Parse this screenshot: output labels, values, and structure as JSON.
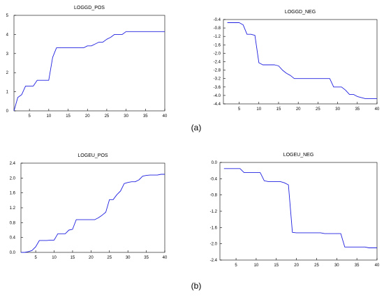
{
  "figure": {
    "panel_labels": [
      "(a)",
      "(b)"
    ]
  },
  "chart_data": [
    {
      "type": "line",
      "title": "LOGGD_POS",
      "xlabel": "",
      "ylabel": "",
      "xlim": [
        1,
        40
      ],
      "ylim": [
        0,
        5
      ],
      "xticks": [
        5,
        10,
        15,
        20,
        25,
        30,
        35,
        40
      ],
      "yticks": [
        0,
        1,
        2,
        3,
        4,
        5
      ],
      "ytick_labels": [
        "0",
        "1",
        "2",
        "3",
        "4",
        "5"
      ],
      "color": "#2020e0",
      "grid": false,
      "series": [
        {
          "x": [
            1,
            2,
            3,
            4,
            5,
            6,
            7,
            8,
            9,
            10,
            11,
            12,
            13,
            14,
            15,
            16,
            17,
            18,
            19,
            20,
            21,
            22,
            23,
            24,
            25,
            26,
            27,
            28,
            29,
            30,
            31,
            32,
            33,
            34,
            35,
            36,
            37,
            38,
            39,
            40
          ],
          "values": [
            0,
            0.7,
            0.85,
            1.3,
            1.3,
            1.3,
            1.6,
            1.6,
            1.6,
            1.6,
            2.8,
            3.3,
            3.3,
            3.3,
            3.3,
            3.3,
            3.3,
            3.3,
            3.3,
            3.4,
            3.4,
            3.5,
            3.6,
            3.6,
            3.75,
            3.85,
            4.0,
            4.0,
            4.0,
            4.15,
            4.15,
            4.15,
            4.15,
            4.15,
            4.15,
            4.15,
            4.15,
            4.15,
            4.15,
            4.15
          ]
        }
      ]
    },
    {
      "type": "line",
      "title": "LOGGD_NEG",
      "xlabel": "",
      "ylabel": "",
      "xlim": [
        1,
        40
      ],
      "ylim": [
        -4.4,
        -0.4
      ],
      "xticks": [
        5,
        10,
        15,
        20,
        25,
        30,
        35,
        40
      ],
      "yticks": [
        -0.4,
        -0.8,
        -1.2,
        -1.6,
        -2.0,
        -2.4,
        -2.8,
        -3.2,
        -3.6,
        -4.0,
        -4.4
      ],
      "ytick_labels": [
        "-0.4",
        "-0.8",
        "-1.2",
        "-1.6",
        "-2.0",
        "-2.4",
        "-2.8",
        "-3.2",
        "-3.6",
        "-4.0",
        "-4.4"
      ],
      "color": "#2020e0",
      "grid": false,
      "series": [
        {
          "x": [
            2,
            3,
            4,
            5,
            6,
            7,
            8,
            9,
            10,
            11,
            12,
            13,
            14,
            15,
            16,
            17,
            18,
            19,
            20,
            21,
            22,
            23,
            24,
            25,
            26,
            27,
            28,
            29,
            30,
            31,
            32,
            33,
            34,
            35,
            36,
            37,
            38,
            39,
            40
          ],
          "values": [
            -0.55,
            -0.55,
            -0.55,
            -0.55,
            -0.65,
            -1.1,
            -1.1,
            -1.15,
            -2.45,
            -2.55,
            -2.55,
            -2.55,
            -2.55,
            -2.6,
            -2.8,
            -2.95,
            -3.05,
            -3.2,
            -3.2,
            -3.2,
            -3.2,
            -3.2,
            -3.2,
            -3.2,
            -3.2,
            -3.2,
            -3.2,
            -3.6,
            -3.6,
            -3.6,
            -3.75,
            -3.95,
            -3.95,
            -4.05,
            -4.1,
            -4.15,
            -4.15,
            -4.15,
            -4.15
          ]
        }
      ]
    },
    {
      "type": "line",
      "title": "LOGEU_POS",
      "xlabel": "",
      "ylabel": "",
      "xlim": [
        1,
        40
      ],
      "ylim": [
        0,
        2.4
      ],
      "xticks": [
        5,
        10,
        15,
        20,
        25,
        30,
        35,
        40
      ],
      "yticks": [
        0.0,
        0.4,
        0.8,
        1.2,
        1.6,
        2.0,
        2.4
      ],
      "ytick_labels": [
        "0.0",
        "0.4",
        "0.8",
        "1.2",
        "1.6",
        "2.0",
        "2.4"
      ],
      "color": "#2020e0",
      "grid": false,
      "series": [
        {
          "x": [
            1,
            2,
            3,
            4,
            5,
            6,
            7,
            8,
            9,
            10,
            11,
            12,
            13,
            14,
            15,
            16,
            17,
            18,
            19,
            20,
            21,
            22,
            23,
            24,
            25,
            26,
            27,
            28,
            29,
            30,
            31,
            32,
            33,
            34,
            35,
            36,
            37,
            38,
            39,
            40
          ],
          "values": [
            0,
            0,
            0.02,
            0.05,
            0.15,
            0.32,
            0.32,
            0.32,
            0.33,
            0.33,
            0.5,
            0.5,
            0.5,
            0.6,
            0.62,
            0.88,
            0.88,
            0.88,
            0.88,
            0.88,
            0.88,
            0.93,
            1.0,
            1.08,
            1.42,
            1.42,
            1.55,
            1.65,
            1.85,
            1.88,
            1.9,
            1.9,
            1.95,
            2.05,
            2.07,
            2.08,
            2.08,
            2.08,
            2.1,
            2.1
          ]
        }
      ]
    },
    {
      "type": "line",
      "title": "LOGEU_NEG",
      "xlabel": "",
      "ylabel": "",
      "xlim": [
        1,
        40
      ],
      "ylim": [
        -2.4,
        0.0
      ],
      "xticks": [
        5,
        10,
        15,
        20,
        25,
        30,
        35,
        40
      ],
      "yticks": [
        0.0,
        -0.4,
        -0.8,
        -1.2,
        -1.6,
        -2.0,
        -2.4
      ],
      "ytick_labels": [
        "0.0",
        "-0.4",
        "-0.8",
        "-1.2",
        "-1.6",
        "-2.0",
        "-2.4"
      ],
      "color": "#2020e0",
      "grid": false,
      "series": [
        {
          "x": [
            2,
            3,
            4,
            5,
            6,
            7,
            8,
            9,
            10,
            11,
            12,
            13,
            14,
            15,
            16,
            17,
            18,
            19,
            20,
            21,
            22,
            23,
            24,
            25,
            26,
            27,
            28,
            29,
            30,
            31,
            32,
            33,
            34,
            35,
            36,
            37,
            38,
            39,
            40
          ],
          "values": [
            -0.15,
            -0.15,
            -0.15,
            -0.15,
            -0.15,
            -0.25,
            -0.25,
            -0.25,
            -0.25,
            -0.25,
            -0.45,
            -0.47,
            -0.47,
            -0.47,
            -0.47,
            -0.5,
            -0.55,
            -1.72,
            -1.73,
            -1.73,
            -1.73,
            -1.73,
            -1.73,
            -1.73,
            -1.73,
            -1.75,
            -1.75,
            -1.75,
            -1.75,
            -1.75,
            -2.08,
            -2.08,
            -2.08,
            -2.08,
            -2.08,
            -2.08,
            -2.1,
            -2.1,
            -2.1
          ]
        }
      ]
    }
  ]
}
